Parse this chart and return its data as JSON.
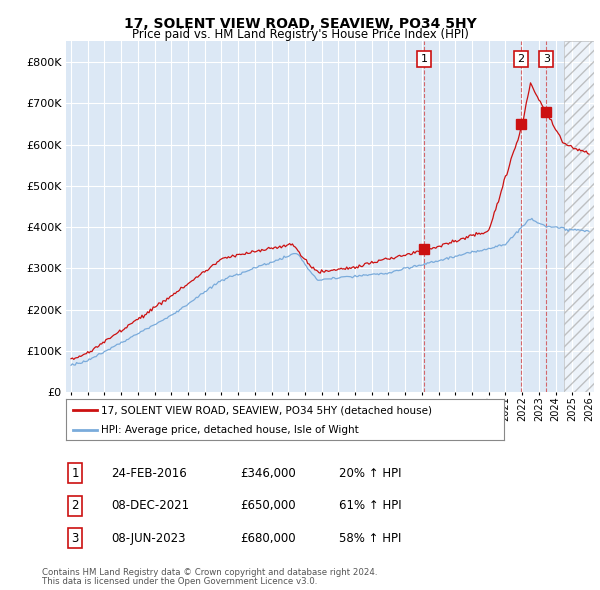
{
  "title": "17, SOLENT VIEW ROAD, SEAVIEW, PO34 5HY",
  "subtitle": "Price paid vs. HM Land Registry's House Price Index (HPI)",
  "footer1": "Contains HM Land Registry data © Crown copyright and database right 2024.",
  "footer2": "This data is licensed under the Open Government Licence v3.0.",
  "legend1": "17, SOLENT VIEW ROAD, SEAVIEW, PO34 5HY (detached house)",
  "legend2": "HPI: Average price, detached house, Isle of Wight",
  "table": [
    {
      "num": "1",
      "date": "24-FEB-2016",
      "price": "£346,000",
      "change": "20% ↑ HPI"
    },
    {
      "num": "2",
      "date": "08-DEC-2021",
      "price": "£650,000",
      "change": "61% ↑ HPI"
    },
    {
      "num": "3",
      "date": "08-JUN-2023",
      "price": "£680,000",
      "change": "58% ↑ HPI"
    }
  ],
  "sales": [
    {
      "year": 2016.12,
      "value": 346000
    },
    {
      "year": 2021.92,
      "value": 650000
    },
    {
      "year": 2023.44,
      "value": 680000
    }
  ],
  "hpi_color": "#7aabdb",
  "sale_color": "#cc1111",
  "plot_bg": "#dce8f5",
  "grid_color": "#ffffff",
  "hatch_start": 2024.5,
  "ylim": [
    0,
    850000
  ],
  "yticks": [
    0,
    100000,
    200000,
    300000,
    400000,
    500000,
    600000,
    700000,
    800000
  ],
  "xmin": 1994.7,
  "xmax": 2026.3,
  "xtick_years": [
    1995,
    1996,
    1997,
    1998,
    1999,
    2000,
    2001,
    2002,
    2003,
    2004,
    2005,
    2006,
    2007,
    2008,
    2009,
    2010,
    2011,
    2012,
    2013,
    2014,
    2015,
    2016,
    2017,
    2018,
    2019,
    2020,
    2021,
    2022,
    2023,
    2024,
    2025,
    2026
  ]
}
